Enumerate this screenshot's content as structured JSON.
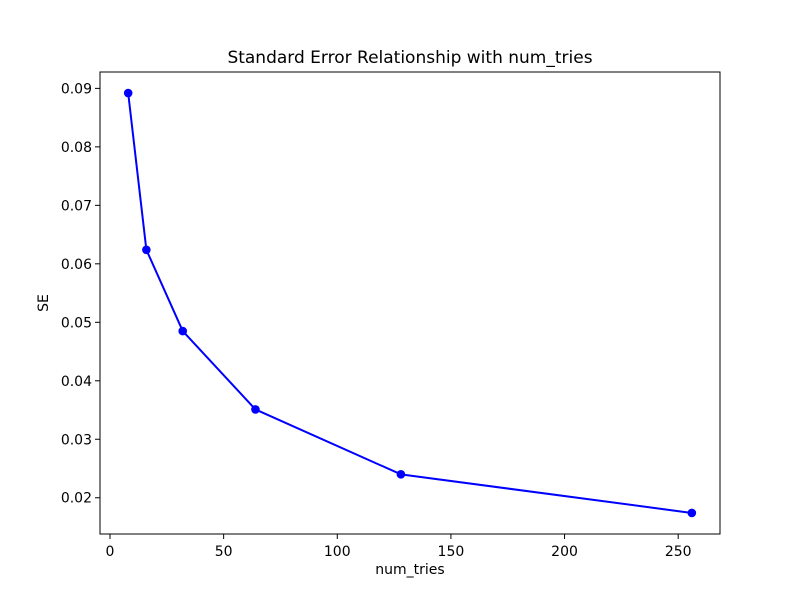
{
  "figure": {
    "background": "#ffffff",
    "spine_color": "#000000",
    "text_color": "#000000"
  },
  "chart_data": {
    "type": "line",
    "title": "Standard Error Relationship with num_tries",
    "xlabel": "num_tries",
    "ylabel": "SE",
    "x": [
      8,
      16,
      32,
      64,
      128,
      256
    ],
    "y": [
      0.0892,
      0.0624,
      0.0485,
      0.0351,
      0.024,
      0.0174
    ],
    "xticks": [
      0,
      50,
      100,
      150,
      200,
      250
    ],
    "yticks": [
      0.02,
      0.03,
      0.04,
      0.05,
      0.06,
      0.07,
      0.08,
      0.09
    ],
    "ytick_decimals": 2,
    "xlim": [
      -4.4,
      268.4
    ],
    "ylim": [
      0.0138,
      0.0928
    ],
    "line_color": "#0000ff",
    "marker": "circle",
    "grid": false,
    "legend_position": "none"
  }
}
